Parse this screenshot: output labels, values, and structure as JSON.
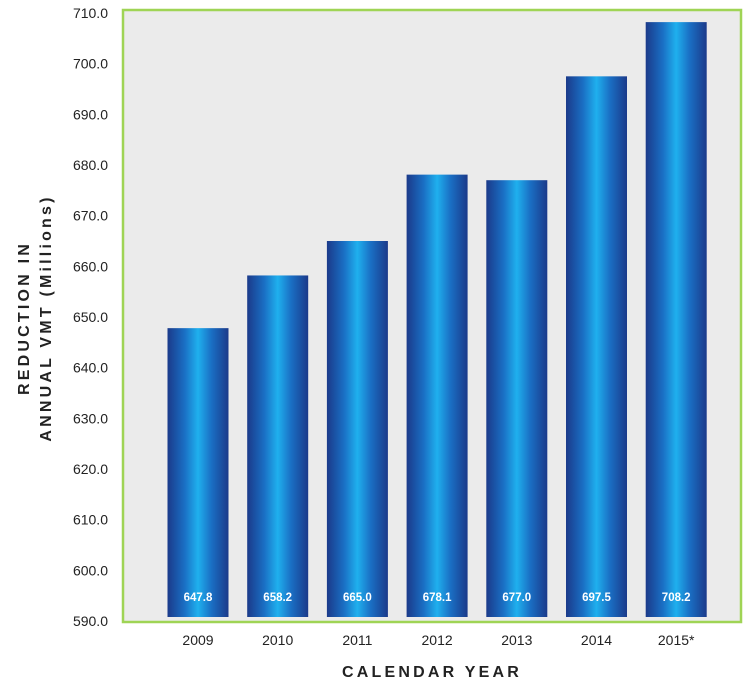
{
  "colors": {
    "plot_background": "#ebebeb",
    "plot_border": "#9fd455",
    "bar_dark": "#1b3a8a",
    "bar_mid": "#1a6fc4",
    "bar_light": "#1fb0ee"
  },
  "chart_data": {
    "type": "bar",
    "categories": [
      "2009",
      "2010",
      "2011",
      "2012",
      "2013",
      "2014",
      "2015*"
    ],
    "values": [
      647.8,
      658.2,
      665.0,
      678.1,
      677.0,
      697.5,
      708.2
    ],
    "value_labels": [
      "647.8",
      "658.2",
      "665.0",
      "678.1",
      "677.0",
      "697.5",
      "708.2"
    ],
    "y_ticks": [
      "590.0",
      "600.0",
      "610.0",
      "620.0",
      "630.0",
      "640.0",
      "650.0",
      "660.0",
      "670.0",
      "680.0",
      "690.0",
      "700.0",
      "710.0"
    ],
    "ylim": [
      590,
      710
    ],
    "xlabel": "CALENDAR YEAR",
    "ylabel_lines": [
      "REDUCTION IN",
      "ANNUAL VMT (Millions)"
    ],
    "grid": false,
    "legend": "none"
  }
}
